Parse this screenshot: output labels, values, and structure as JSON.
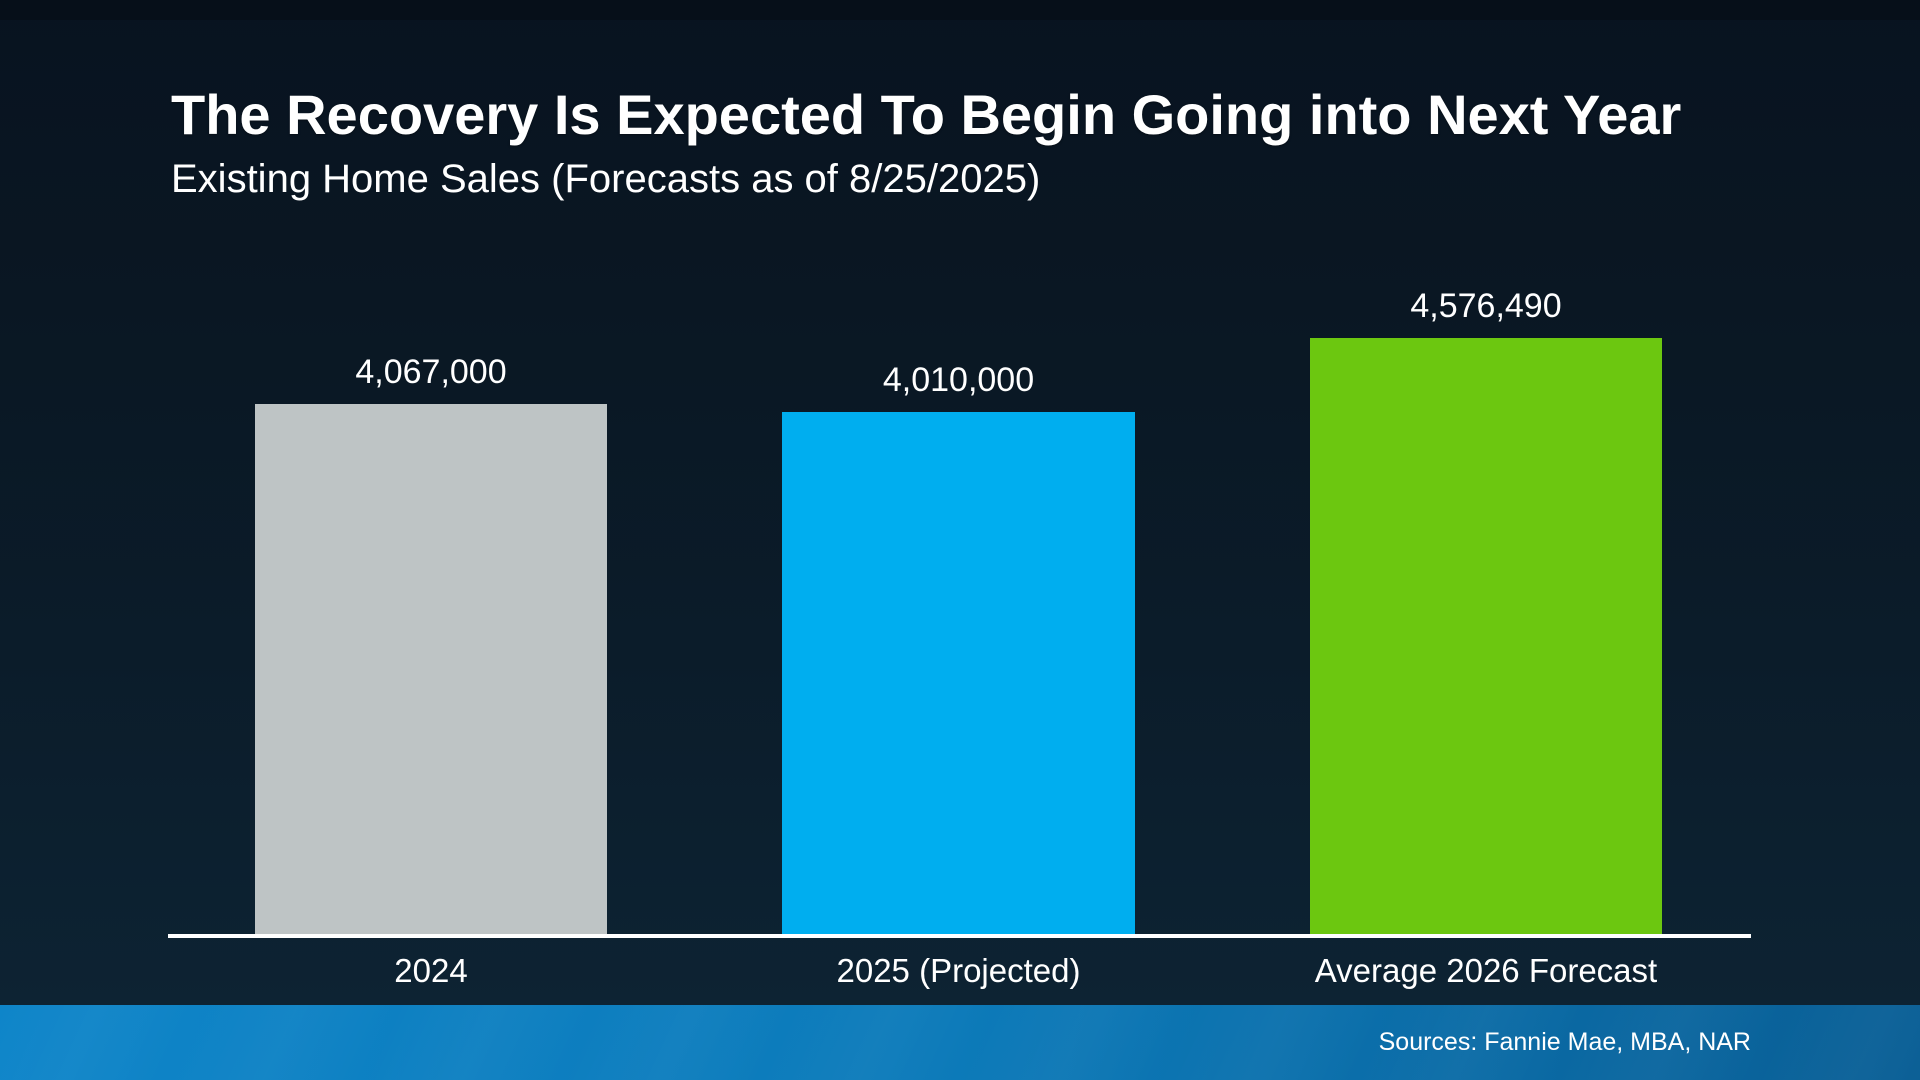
{
  "slide": {
    "title": "The Recovery Is Expected To Begin Going into Next Year",
    "subtitle": "Existing Home Sales (Forecasts as of 8/25/2025)",
    "sources": "Sources: Fannie Mae, MBA, NAR"
  },
  "colors": {
    "background_top": "#081320",
    "background_bottom": "#0d2333",
    "axis": "#ffffff",
    "text": "#ffffff",
    "footer_gradient_left": "#0e85c9",
    "footer_gradient_right": "#095e95"
  },
  "chart_data": {
    "type": "bar",
    "title": "Existing Home Sales (Forecasts as of 8/25/2025)",
    "categories": [
      "2024",
      "2025 (Projected)",
      "Average 2026 Forecast"
    ],
    "values": [
      4067000,
      4010000,
      4576490
    ],
    "value_labels": [
      "4,067,000",
      "4,010,000",
      "4,576,490"
    ],
    "bar_colors": [
      "#bec4c5",
      "#00aeef",
      "#6cc710"
    ],
    "xlabel": "",
    "ylabel": "",
    "ylim": [
      0,
      4600000
    ],
    "grid": false,
    "legend": false,
    "value_labels_position": "above-bars",
    "baseline": "x-axis at zero"
  }
}
